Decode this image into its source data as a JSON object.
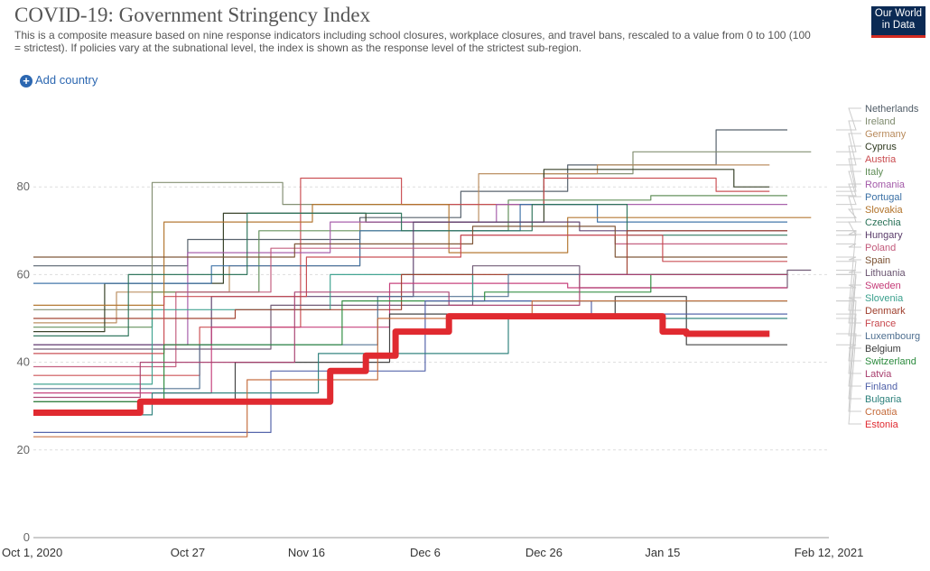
{
  "header": {
    "title": "COVID-19: Government Stringency Index",
    "subtitle": "This is a composite measure based on nine response indicators including school closures, workplace closures, and travel bans, rescaled to a value from 0 to 100 (100 = strictest). If policies vary at the subnational level, the index is shown as the response level of the strictest sub-region.",
    "logo_line1": "Our World",
    "logo_line2": "in Data",
    "add_country_label": "Add country",
    "add_icon": "plus-circle-icon"
  },
  "chart_data": {
    "type": "line",
    "title": "COVID-19: Government Stringency Index",
    "xlabel": "",
    "ylabel": "",
    "ylim": [
      0,
      100
    ],
    "yticks": [
      0,
      20,
      40,
      60,
      80
    ],
    "x_range_days": [
      0,
      134
    ],
    "xticks": [
      {
        "label": "Oct 1, 2020",
        "day": 0
      },
      {
        "label": "Oct 27",
        "day": 26
      },
      {
        "label": "Nov 16",
        "day": 46
      },
      {
        "label": "Dec 6",
        "day": 66
      },
      {
        "label": "Dec 26",
        "day": 86
      },
      {
        "label": "Jan 15",
        "day": 106
      },
      {
        "label": "Feb 12, 2021",
        "day": 134
      }
    ],
    "highlighted": "Estonia",
    "series": [
      {
        "name": "Netherlands",
        "color": "#4f5b66",
        "x": [
          0,
          26,
          26,
          55,
          55,
          72,
          72,
          90,
          90,
          115,
          115,
          127
        ],
        "values": [
          62,
          62,
          68,
          68,
          73,
          73,
          79,
          79,
          85,
          85,
          93,
          93
        ]
      },
      {
        "name": "Ireland",
        "color": "#7e8a6d",
        "x": [
          0,
          20,
          20,
          42,
          42,
          86,
          86,
          101,
          101,
          131
        ],
        "values": [
          52,
          52,
          81,
          81,
          76,
          76,
          83,
          83,
          88,
          88
        ]
      },
      {
        "name": "Germany",
        "color": "#b88a5b",
        "x": [
          0,
          14,
          14,
          33,
          33,
          55,
          55,
          75,
          75,
          95,
          95,
          124
        ],
        "values": [
          49,
          49,
          56,
          56,
          62,
          62,
          72,
          72,
          83,
          83,
          85,
          85
        ]
      },
      {
        "name": "Cyprus",
        "color": "#2f3a20",
        "x": [
          0,
          12,
          12,
          32,
          32,
          56,
          56,
          86,
          86,
          118,
          118,
          124
        ],
        "values": [
          47,
          47,
          58,
          58,
          74,
          74,
          72,
          72,
          84,
          84,
          80,
          80
        ]
      },
      {
        "name": "Austria",
        "color": "#c94a4e",
        "x": [
          0,
          28,
          28,
          45,
          45,
          62,
          62,
          86,
          86,
          115,
          115,
          124
        ],
        "values": [
          37,
          37,
          48,
          48,
          82,
          82,
          76,
          76,
          82,
          82,
          79,
          79
        ]
      },
      {
        "name": "Italy",
        "color": "#5e8c55",
        "x": [
          0,
          20,
          20,
          38,
          38,
          80,
          80,
          104,
          104,
          127
        ],
        "values": [
          48,
          48,
          56,
          56,
          70,
          70,
          77,
          77,
          78,
          78
        ]
      },
      {
        "name": "Romania",
        "color": "#a35aa8",
        "x": [
          0,
          26,
          26,
          50,
          50,
          78,
          78,
          127
        ],
        "values": [
          44,
          44,
          65,
          65,
          72,
          72,
          76,
          76
        ]
      },
      {
        "name": "Portugal",
        "color": "#3a70a5",
        "x": [
          0,
          30,
          30,
          55,
          55,
          82,
          82,
          95,
          95,
          127
        ],
        "values": [
          58,
          58,
          62,
          62,
          70,
          70,
          76,
          76,
          72,
          72
        ]
      },
      {
        "name": "Slovakia",
        "color": "#b1732a",
        "x": [
          0,
          22,
          22,
          47,
          47,
          70,
          70,
          90,
          90,
          131
        ],
        "values": [
          53,
          53,
          72,
          72,
          76,
          76,
          65,
          65,
          73,
          73
        ]
      },
      {
        "name": "Czechia",
        "color": "#2a7258",
        "x": [
          0,
          16,
          16,
          36,
          36,
          62,
          62,
          84,
          84,
          100,
          100,
          127
        ],
        "values": [
          46,
          46,
          60,
          60,
          74,
          74,
          70,
          70,
          76,
          76,
          69,
          69
        ]
      },
      {
        "name": "Hungary",
        "color": "#5b3d6b",
        "x": [
          0,
          30,
          30,
          64,
          64,
          92,
          92,
          127
        ],
        "values": [
          44,
          44,
          55,
          55,
          72,
          72,
          70,
          70
        ]
      },
      {
        "name": "Poland",
        "color": "#c25a7b",
        "x": [
          0,
          24,
          24,
          40,
          40,
          72,
          72,
          98,
          98,
          127
        ],
        "values": [
          39,
          39,
          56,
          56,
          66,
          66,
          69,
          69,
          67,
          67
        ]
      },
      {
        "name": "Spain",
        "color": "#7a5030",
        "x": [
          0,
          44,
          44,
          74,
          74,
          98,
          98,
          127
        ],
        "values": [
          64,
          64,
          67,
          67,
          71,
          71,
          64,
          64
        ]
      },
      {
        "name": "Lithuania",
        "color": "#6a5470",
        "x": [
          0,
          40,
          40,
          74,
          74,
          92,
          92,
          127,
          127,
          131
        ],
        "values": [
          43,
          43,
          53,
          53,
          62,
          62,
          57,
          57,
          61,
          61
        ]
      },
      {
        "name": "Sweden",
        "color": "#c43a77",
        "x": [
          0,
          30,
          30,
          60,
          60,
          90,
          90,
          127
        ],
        "values": [
          33,
          33,
          48,
          48,
          58,
          58,
          57,
          57
        ]
      },
      {
        "name": "Slovenia",
        "color": "#3aa08d",
        "x": [
          0,
          20,
          20,
          50,
          50,
          74,
          74,
          127
        ],
        "values": [
          35,
          35,
          52,
          52,
          60,
          60,
          54,
          54
        ]
      },
      {
        "name": "Denmark",
        "color": "#9e3d2b",
        "x": [
          0,
          34,
          34,
          62,
          62,
          100,
          100,
          127
        ],
        "values": [
          50,
          50,
          52,
          52,
          60,
          60,
          70,
          70
        ]
      },
      {
        "name": "France",
        "color": "#c7474d",
        "x": [
          0,
          22,
          22,
          46,
          46,
          72,
          72,
          106,
          106,
          127
        ],
        "values": [
          42,
          42,
          55,
          55,
          64,
          64,
          69,
          69,
          63,
          63
        ]
      },
      {
        "name": "Luxembourg",
        "color": "#4d6e8f",
        "x": [
          0,
          28,
          28,
          58,
          58,
          80,
          80,
          127
        ],
        "values": [
          34,
          34,
          44,
          44,
          55,
          55,
          60,
          60
        ]
      },
      {
        "name": "Belgium",
        "color": "#3b3b3b",
        "x": [
          0,
          34,
          34,
          60,
          60,
          98,
          98,
          110,
          110,
          127
        ],
        "values": [
          31,
          31,
          40,
          40,
          51,
          51,
          55,
          55,
          44,
          44
        ]
      },
      {
        "name": "Switzerland",
        "color": "#2a8a3c",
        "x": [
          0,
          22,
          22,
          52,
          52,
          76,
          76,
          104,
          104,
          127
        ],
        "values": [
          31,
          31,
          44,
          44,
          54,
          54,
          56,
          56,
          60,
          60
        ]
      },
      {
        "name": "Latvia",
        "color": "#a83e6e",
        "x": [
          0,
          18,
          18,
          44,
          44,
          70,
          70,
          92,
          92,
          127
        ],
        "values": [
          32,
          32,
          40,
          40,
          56,
          56,
          53,
          53,
          60,
          60
        ]
      },
      {
        "name": "Finland",
        "color": "#4e5fa8",
        "x": [
          0,
          40,
          40,
          66,
          66,
          94,
          94,
          127
        ],
        "values": [
          24,
          24,
          38,
          38,
          54,
          54,
          51,
          51
        ]
      },
      {
        "name": "Bulgaria",
        "color": "#2a7f7a",
        "x": [
          0,
          20,
          20,
          48,
          48,
          80,
          80,
          127
        ],
        "values": [
          28,
          28,
          33,
          33,
          42,
          42,
          50,
          50
        ]
      },
      {
        "name": "Croatia",
        "color": "#c46a3a",
        "x": [
          0,
          36,
          36,
          58,
          58,
          84,
          84,
          127
        ],
        "values": [
          23,
          23,
          36,
          36,
          50,
          50,
          54,
          54
        ]
      },
      {
        "name": "Estonia",
        "color": "#e02a30",
        "x": [
          0,
          18,
          18,
          42,
          42,
          50,
          50,
          56,
          56,
          61,
          61,
          70,
          70,
          92,
          92,
          106,
          106,
          110,
          110,
          124
        ],
        "values": [
          28.5,
          28.5,
          31,
          31,
          31,
          31,
          38,
          38,
          41.5,
          41.5,
          47,
          47,
          50.5,
          50.5,
          50.5,
          50.5,
          47,
          47,
          46.5,
          46.5
        ]
      }
    ]
  }
}
